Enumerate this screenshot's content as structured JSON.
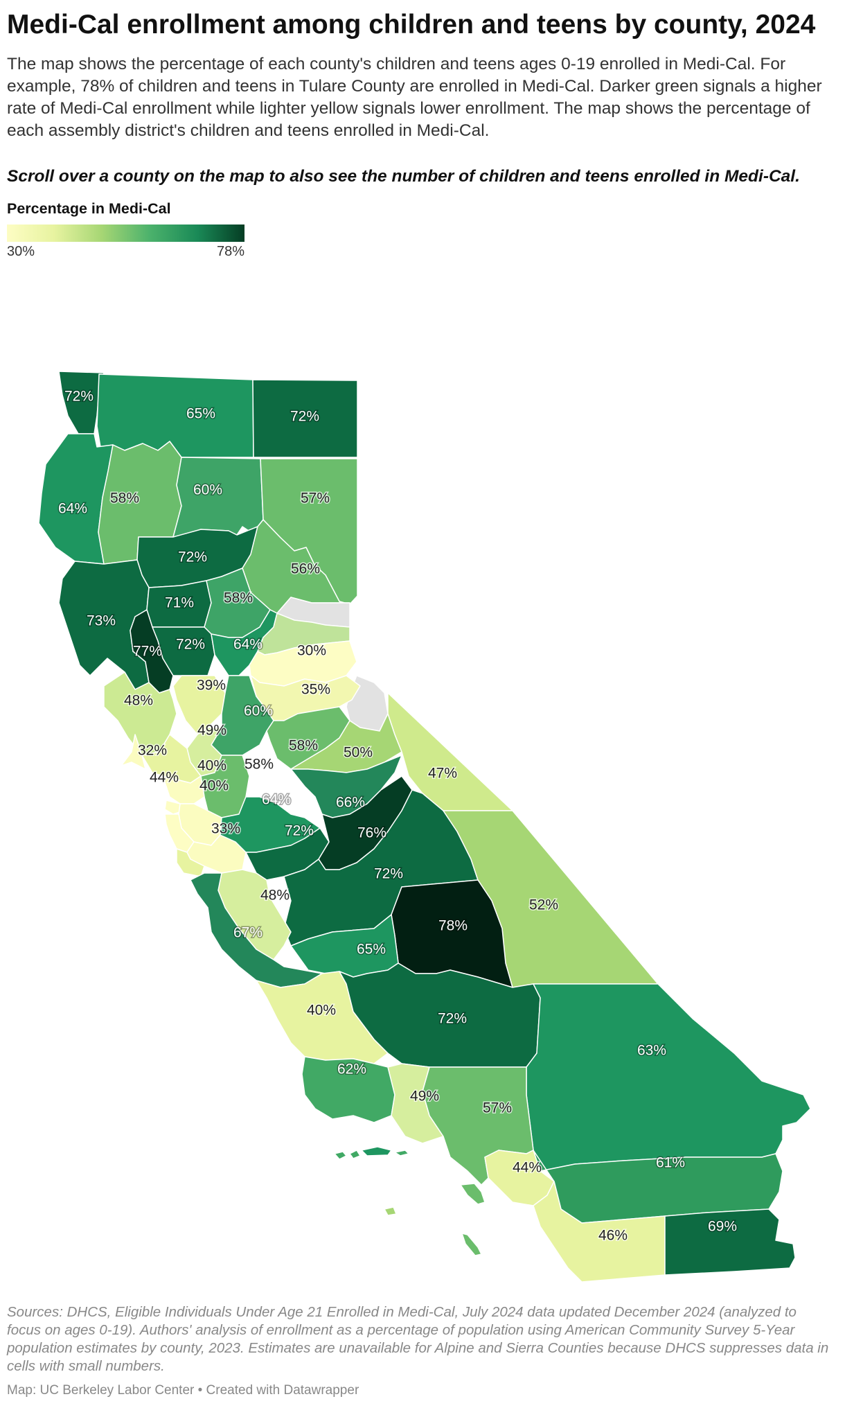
{
  "title": "Medi-Cal enrollment among children and teens by county, 2024",
  "description": "The map shows the percentage of each county's children and teens ages 0-19 enrolled in Medi-Cal. For example, 78% of children and teens in Tulare County are enrolled in Medi-Cal. Darker green signals a higher rate of Medi-Cal enrollment while lighter yellow signals lower enrollment. The map shows the percentage of each assembly district's children and teens enrolled in Medi-Cal.",
  "note": "Scroll over a county on the map to also see the number of children and teens enrolled in Medi-Cal.",
  "legend": {
    "title": "Percentage in Medi-Cal",
    "min_label": "30%",
    "max_label": "78%",
    "min": 30,
    "max": 78,
    "colors": [
      "#fdfdc4",
      "#e7f3a0",
      "#a6d674",
      "#4cb26c",
      "#1a8a57",
      "#053d24"
    ],
    "no_data_color": "#e2e2e2"
  },
  "map_labels": [
    "72%",
    "65%",
    "72%",
    "64%",
    "58%",
    "60%",
    "57%",
    "72%",
    "56%",
    "73%",
    "71%",
    "58%",
    "77%",
    "72%",
    "64%",
    "30%",
    "39%",
    "35%",
    "48%",
    "60%",
    "49%",
    "58%",
    "50%",
    "32%",
    "40%",
    "58%",
    "47%",
    "44%",
    "40%",
    "64%",
    "66%",
    "33%",
    "72%",
    "76%",
    "72%",
    "52%",
    "48%",
    "78%",
    "67%",
    "65%",
    "40%",
    "72%",
    "63%",
    "62%",
    "49%",
    "57%",
    "44%",
    "61%",
    "46%",
    "69%"
  ],
  "source": "Sources: DHCS, Eligible Individuals Under Age 21 Enrolled in Medi-Cal, July 2024 data updated December 2024 (analyzed to focus on ages 0-19). Authors' analysis of enrollment as a percentage of population using American Community Survey 5-Year population estimates by county, 2023. Estimates are unavailable for Alpine and Sierra Counties because DHCS suppresses data in cells with small numbers.",
  "footer": "Map: UC Berkeley Labor Center • Created with Datawrapper"
}
